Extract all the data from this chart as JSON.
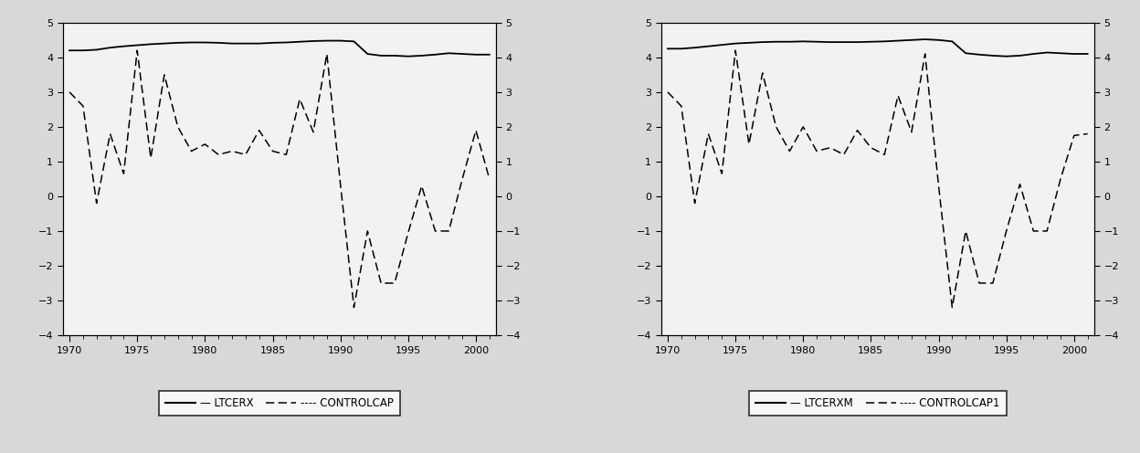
{
  "years": [
    1970,
    1971,
    1972,
    1973,
    1974,
    1975,
    1976,
    1977,
    1978,
    1979,
    1980,
    1981,
    1982,
    1983,
    1984,
    1985,
    1986,
    1987,
    1988,
    1989,
    1990,
    1991,
    1992,
    1993,
    1994,
    1995,
    1996,
    1997,
    1998,
    1999,
    2000,
    2001
  ],
  "ltcerx": [
    4.2,
    4.2,
    4.22,
    4.28,
    4.32,
    4.35,
    4.38,
    4.4,
    4.42,
    4.43,
    4.43,
    4.42,
    4.4,
    4.4,
    4.4,
    4.42,
    4.43,
    4.45,
    4.47,
    4.48,
    4.48,
    4.46,
    4.1,
    4.05,
    4.05,
    4.03,
    4.05,
    4.08,
    4.12,
    4.1,
    4.08,
    4.08
  ],
  "controlcap": [
    3.0,
    2.6,
    -0.2,
    1.8,
    0.65,
    4.2,
    1.1,
    3.5,
    2.0,
    1.3,
    1.5,
    1.2,
    1.3,
    1.2,
    1.9,
    1.3,
    1.2,
    2.8,
    1.85,
    4.1,
    0.35,
    -3.2,
    -1.0,
    -2.5,
    -2.5,
    -1.05,
    0.3,
    -1.0,
    -1.0,
    0.5,
    1.9,
    0.5
  ],
  "ltcerxm": [
    4.25,
    4.25,
    4.28,
    4.32,
    4.36,
    4.4,
    4.42,
    4.44,
    4.45,
    4.45,
    4.46,
    4.45,
    4.44,
    4.44,
    4.44,
    4.45,
    4.46,
    4.48,
    4.5,
    4.52,
    4.5,
    4.46,
    4.12,
    4.08,
    4.05,
    4.03,
    4.05,
    4.1,
    4.14,
    4.12,
    4.1,
    4.1
  ],
  "controlcap1": [
    3.0,
    2.6,
    -0.2,
    1.8,
    0.65,
    4.2,
    1.5,
    3.55,
    2.0,
    1.3,
    2.0,
    1.3,
    1.4,
    1.2,
    1.9,
    1.4,
    1.2,
    2.9,
    1.85,
    4.1,
    0.3,
    -3.2,
    -1.0,
    -2.5,
    -2.5,
    -1.0,
    0.35,
    -1.0,
    -1.0,
    0.5,
    1.75,
    1.8
  ],
  "ylim": [
    -4,
    5
  ],
  "yticks": [
    -4,
    -3,
    -2,
    -1,
    0,
    1,
    2,
    3,
    4,
    5
  ],
  "xlim_start": 1969.5,
  "xlim_end": 2001.5,
  "xticks": [
    1970,
    1975,
    1980,
    1985,
    1990,
    1995,
    2000
  ],
  "legend1_solid": "LTCERX",
  "legend1_dash": "CONTROLCAP",
  "legend2_solid": "LTCERXM",
  "legend2_dash": "CONTROLCAP1",
  "line_color": "#000000",
  "bg_color": "#f0f0f0"
}
